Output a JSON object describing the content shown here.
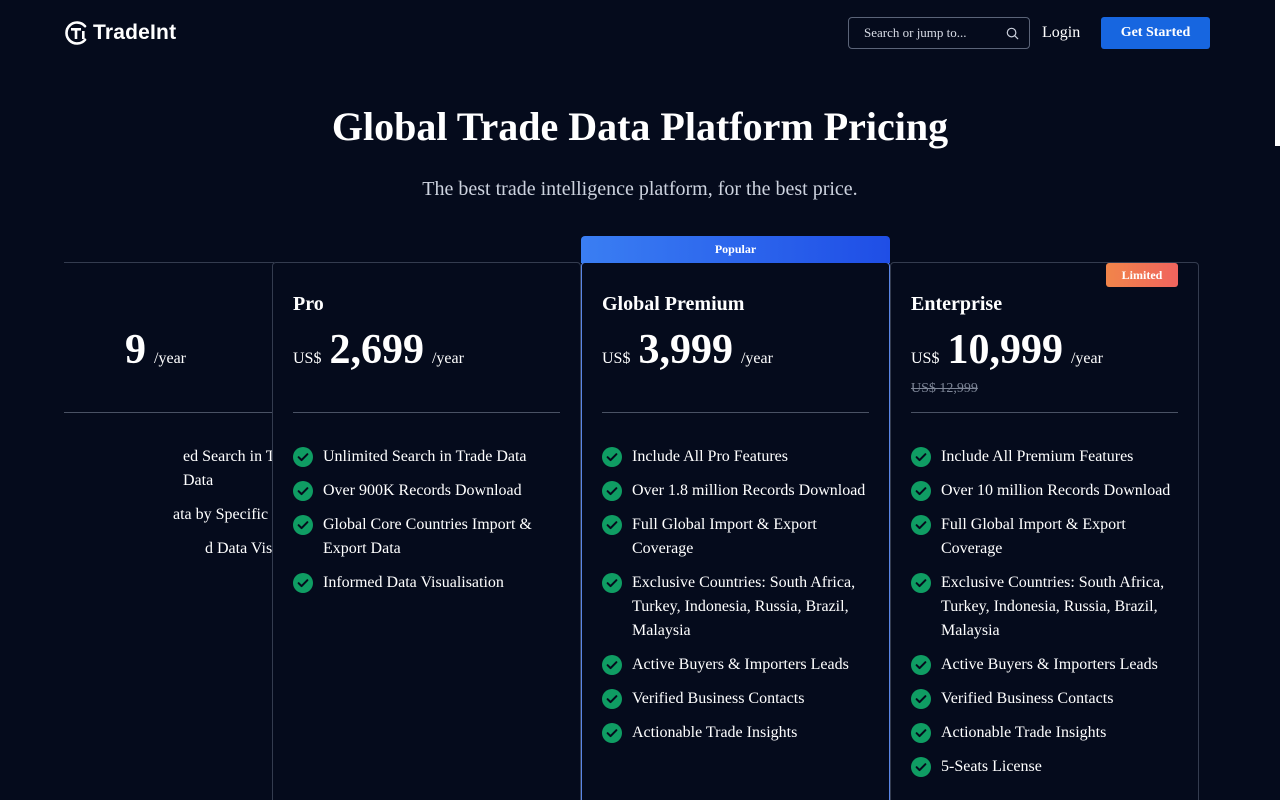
{
  "header": {
    "logo_text": "TradeInt",
    "search_placeholder": "Search or jump to...",
    "login_label": "Login",
    "get_started_label": "Get Started"
  },
  "hero": {
    "title": "Global Trade Data Platform Pricing",
    "subtitle": "The best trade intelligence platform, for the best price."
  },
  "plans": [
    {
      "name": "",
      "currency": "",
      "amount": "9",
      "period": "/year",
      "features": [
        "ed Search in Trade Data",
        "ata by Specific Countries",
        "d Data Visualisation"
      ]
    },
    {
      "name": "Pro",
      "currency": "US$",
      "amount": "2,699",
      "period": "/year",
      "features": [
        "Unlimited Search in Trade Data",
        "Over 900K Records Download",
        "Global Core Countries Import & Export Data",
        "Informed Data Visualisation"
      ]
    },
    {
      "name": "Global Premium",
      "badge": "Popular",
      "currency": "US$",
      "amount": "3,999",
      "period": "/year",
      "features": [
        "Include All Pro Features",
        "Over 1.8 million Records Download",
        "Full Global Import & Export Coverage",
        "Exclusive Countries: South Africa, Turkey, Indonesia, Russia, Brazil, Malaysia",
        "Active Buyers & Importers Leads",
        "Verified Business Contacts",
        "Actionable Trade Insights"
      ]
    },
    {
      "name": "Enterprise",
      "badge": "Limited",
      "currency": "US$",
      "amount": "10,999",
      "period": "/year",
      "old_price": "US$ 12,999",
      "features": [
        "Include All Premium Features",
        "Over 10 million Records Download",
        "Full Global Import & Export Coverage",
        "Exclusive Countries: South Africa, Turkey, Indonesia, Russia, Brazil, Malaysia",
        "Active Buyers & Importers Leads",
        "Verified Business Contacts",
        "Actionable Trade Insights",
        "5-Seats License"
      ]
    }
  ],
  "colors": {
    "background": "#050b1c",
    "primary": "#1766e0",
    "check": "#0f9d63",
    "popular_gradient": "#3a7ef3",
    "limited_gradient": "#f1854a"
  },
  "icons": {
    "logo": "tradeint-logo-icon",
    "search": "search-icon",
    "check": "check-circle-icon"
  }
}
